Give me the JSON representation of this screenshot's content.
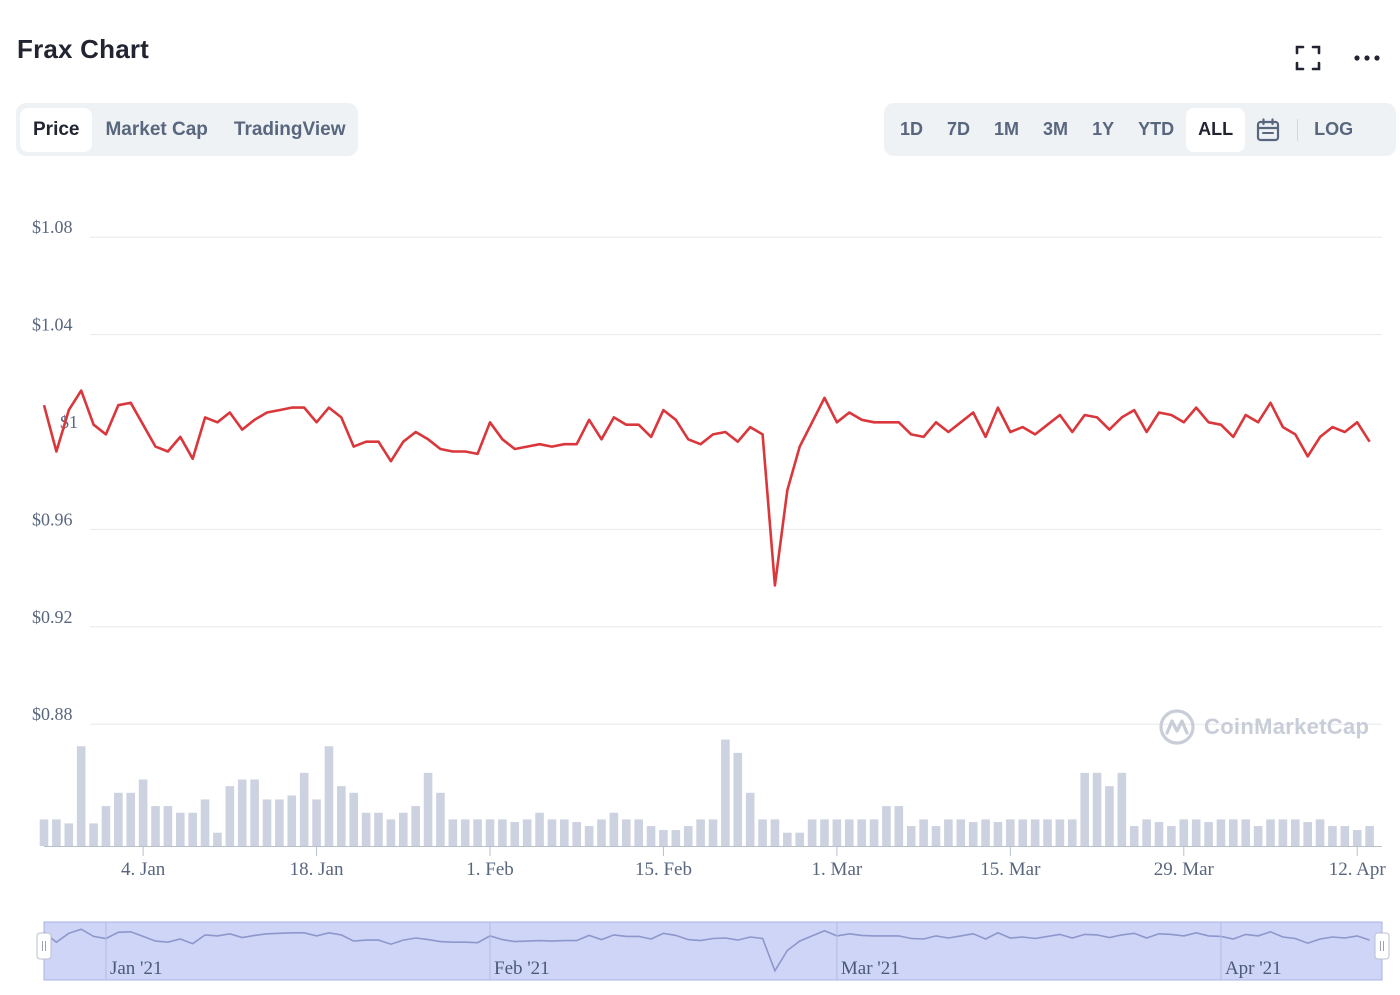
{
  "title": "Frax Chart",
  "view_tabs": [
    {
      "label": "Price",
      "active": true
    },
    {
      "label": "Market Cap",
      "active": false
    },
    {
      "label": "TradingView",
      "active": false
    }
  ],
  "range_tabs": [
    {
      "label": "1D",
      "active": false
    },
    {
      "label": "7D",
      "active": false
    },
    {
      "label": "1M",
      "active": false
    },
    {
      "label": "3M",
      "active": false
    },
    {
      "label": "1Y",
      "active": false
    },
    {
      "label": "YTD",
      "active": false
    },
    {
      "label": "ALL",
      "active": true
    }
  ],
  "log_label": "LOG",
  "icons": {
    "expand": "expand-icon",
    "more": "more-icon",
    "calendar": "calendar-icon",
    "watermark": "coinmarketcap-logo"
  },
  "watermark_text": "CoinMarketCap",
  "colors": {
    "line": "#d9373b",
    "volume": "#cdd2e0",
    "navigator_bg": "#ced5f6",
    "navigator_line": "#8d97cc"
  },
  "chart_data": {
    "type": "line",
    "x_range": [
      "2020-12-27",
      "2021-04-14"
    ],
    "ylim": [
      0.86,
      1.1
    ],
    "yticks": [
      0.88,
      0.92,
      0.96,
      1.0,
      1.04,
      1.08
    ],
    "ytick_labels": [
      "$0.88",
      "$0.92",
      "$0.96",
      "$1",
      "$1.04",
      "$1.08"
    ],
    "xticks": [
      {
        "date": "2021-01-04",
        "label": "4. Jan"
      },
      {
        "date": "2021-01-18",
        "label": "18. Jan"
      },
      {
        "date": "2021-02-01",
        "label": "1. Feb"
      },
      {
        "date": "2021-02-15",
        "label": "15. Feb"
      },
      {
        "date": "2021-03-01",
        "label": "1. Mar"
      },
      {
        "date": "2021-03-15",
        "label": "15. Mar"
      },
      {
        "date": "2021-03-29",
        "label": "29. Mar"
      },
      {
        "date": "2021-04-12",
        "label": "12. Apr"
      }
    ],
    "navigator_labels": [
      {
        "date": "2021-01-01",
        "label": "Jan '21"
      },
      {
        "date": "2021-02-01",
        "label": "Feb '21"
      },
      {
        "date": "2021-03-01",
        "label": "Mar '21"
      },
      {
        "date": "2021-04-01",
        "label": "Apr '21"
      }
    ],
    "grid": true,
    "legend": "none",
    "series": [
      {
        "start_date": "2020-12-27",
        "interval_days": 1,
        "values": [
          1.011,
          0.992,
          1.009,
          1.017,
          1.003,
          0.999,
          1.011,
          1.012,
          1.003,
          0.994,
          0.992,
          0.998,
          0.989,
          1.006,
          1.004,
          1.008,
          1.001,
          1.005,
          1.008,
          1.009,
          1.01,
          1.01,
          1.004,
          1.01,
          1.006,
          0.994,
          0.996,
          0.996,
          0.988,
          0.996,
          1.0,
          0.997,
          0.993,
          0.992,
          0.992,
          0.991,
          1.004,
          0.997,
          0.993,
          0.994,
          0.995,
          0.994,
          0.995,
          0.995,
          1.005,
          0.997,
          1.006,
          1.003,
          1.003,
          0.998,
          1.009,
          1.005,
          0.997,
          0.995,
          0.999,
          1.0,
          0.996,
          1.002,
          0.999,
          0.937,
          0.976,
          0.994,
          1.004,
          1.014,
          1.004,
          1.008,
          1.005,
          1.004,
          1.004,
          1.004,
          0.999,
          0.998,
          1.004,
          1.0,
          1.004,
          1.008,
          0.998,
          1.01,
          1.0,
          1.002,
          0.999,
          1.003,
          1.007,
          1.0,
          1.007,
          1.006,
          1.001,
          1.006,
          1.009,
          1.0,
          1.008,
          1.007,
          1.004,
          1.01,
          1.004,
          1.003,
          0.998,
          1.007,
          1.004,
          1.012,
          1.002,
          0.999,
          0.99,
          0.998,
          1.002,
          1.0,
          1.004,
          0.996
        ]
      }
    ],
    "volume": {
      "start_date": "2020-12-27",
      "interval_days": 1,
      "values": [
        20,
        20,
        17,
        75,
        17,
        30,
        40,
        40,
        50,
        30,
        30,
        25,
        25,
        35,
        10,
        45,
        50,
        50,
        35,
        35,
        38,
        55,
        35,
        75,
        45,
        40,
        25,
        25,
        20,
        25,
        30,
        55,
        40,
        20,
        20,
        20,
        20,
        20,
        18,
        20,
        25,
        20,
        20,
        18,
        15,
        20,
        25,
        20,
        20,
        15,
        12,
        12,
        15,
        20,
        20,
        80,
        70,
        40,
        20,
        20,
        10,
        10,
        20,
        20,
        20,
        20,
        20,
        20,
        30,
        30,
        15,
        20,
        15,
        20,
        20,
        18,
        20,
        18,
        20,
        20,
        20,
        20,
        20,
        20,
        55,
        55,
        45,
        55,
        15,
        20,
        18,
        15,
        20,
        20,
        18,
        20,
        20,
        20,
        15,
        20,
        20,
        20,
        18,
        20,
        15,
        15,
        12,
        15
      ]
    }
  }
}
